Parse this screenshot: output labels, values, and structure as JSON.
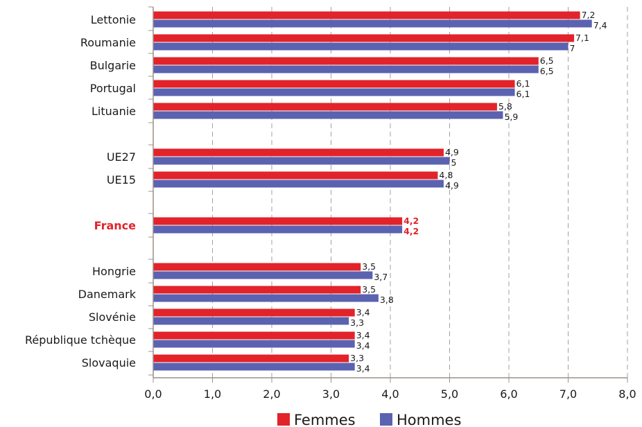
{
  "chart_data": {
    "type": "bar",
    "orientation": "horizontal",
    "categories": [
      "Lettonie",
      "Roumanie",
      "Bulgarie",
      "Portugal",
      "Lituanie",
      "UE27",
      "UE15",
      "France",
      "Hongrie",
      "Danemark",
      "Slovénie",
      "République tchèque",
      "Slovaquie"
    ],
    "highlight_category": "France",
    "series": [
      {
        "name": "Femmes",
        "color": "#e2232a",
        "values": [
          7.2,
          7.1,
          6.5,
          6.1,
          5.8,
          4.9,
          4.8,
          4.2,
          3.5,
          3.5,
          3.4,
          3.4,
          3.3
        ],
        "labels": [
          "7,2",
          "7,1",
          "6,5",
          "6,1",
          "5,8",
          "4,9",
          "4,8",
          "4,2",
          "3,5",
          "3,5",
          "3,4",
          "3,4",
          "3,3"
        ]
      },
      {
        "name": "Hommes",
        "color": "#5b62b0",
        "values": [
          7.4,
          7,
          6.5,
          6.1,
          5.9,
          5,
          4.9,
          4.2,
          3.7,
          3.8,
          3.3,
          3.4,
          3.4
        ],
        "labels": [
          "7,4",
          "7",
          "6,5",
          "6,1",
          "5,9",
          "5",
          "4,9",
          "4,2",
          "3,7",
          "3,8",
          "3,3",
          "3,4",
          "3,4"
        ]
      }
    ],
    "xlim": [
      0,
      8
    ],
    "xticks": [
      "0,0",
      "1,0",
      "2,0",
      "3,0",
      "4,0",
      "5,0",
      "6,0",
      "7,0",
      "8,0"
    ],
    "grid": "vertical dashed",
    "legend_position": "bottom",
    "title": "",
    "xlabel": "",
    "ylabel": ""
  }
}
